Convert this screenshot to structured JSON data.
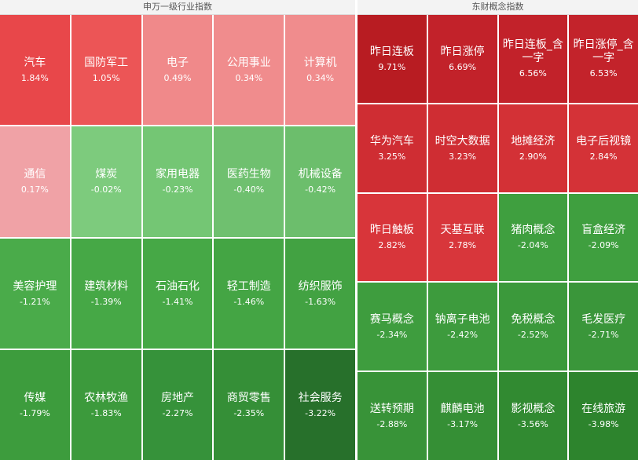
{
  "panels": [
    {
      "title": "申万一级行业指数",
      "cells": [
        {
          "name": "汽车",
          "change": "1.84%",
          "color": "#e8474a"
        },
        {
          "name": "国防军工",
          "change": "1.05%",
          "color": "#ec5556"
        },
        {
          "name": "电子",
          "change": "0.49%",
          "color": "#f0898a"
        },
        {
          "name": "公用事业",
          "change": "0.34%",
          "color": "#f08c8d"
        },
        {
          "name": "计算机",
          "change": "0.34%",
          "color": "#f08c8d"
        },
        {
          "name": "通信",
          "change": "0.17%",
          "color": "#f0a2a6"
        },
        {
          "name": "煤炭",
          "change": "-0.02%",
          "color": "#7dcb7d"
        },
        {
          "name": "家用电器",
          "change": "-0.23%",
          "color": "#74c674"
        },
        {
          "name": "医药生物",
          "change": "-0.40%",
          "color": "#6fc06f"
        },
        {
          "name": "机械设备",
          "change": "-0.42%",
          "color": "#6cbe6c"
        },
        {
          "name": "美容护理",
          "change": "-1.21%",
          "color": "#4aab4a"
        },
        {
          "name": "建筑材料",
          "change": "-1.39%",
          "color": "#46a846"
        },
        {
          "name": "石油石化",
          "change": "-1.41%",
          "color": "#46a846"
        },
        {
          "name": "轻工制造",
          "change": "-1.46%",
          "color": "#44a544"
        },
        {
          "name": "纺织服饰",
          "change": "-1.63%",
          "color": "#42a242"
        },
        {
          "name": "传媒",
          "change": "-1.79%",
          "color": "#3d9c3d"
        },
        {
          "name": "农林牧渔",
          "change": "-1.83%",
          "color": "#3c9a3c"
        },
        {
          "name": "房地产",
          "change": "-2.27%",
          "color": "#36923a"
        },
        {
          "name": "商贸零售",
          "change": "-2.35%",
          "color": "#358f37"
        },
        {
          "name": "社会服务",
          "change": "-3.22%",
          "color": "#27702b"
        }
      ]
    },
    {
      "title": "东财概念指数",
      "cells": [
        {
          "name": "昨日连板",
          "change": "9.71%",
          "color": "#b81c22"
        },
        {
          "name": "昨日涨停",
          "change": "6.69%",
          "color": "#c2222a"
        },
        {
          "name": "昨日连板_含一字",
          "change": "6.56%",
          "color": "#c2222a"
        },
        {
          "name": "昨日涨停_含一字",
          "change": "6.53%",
          "color": "#c3232b"
        },
        {
          "name": "华为汽车",
          "change": "3.25%",
          "color": "#cf2d33"
        },
        {
          "name": "时空大数据",
          "change": "3.23%",
          "color": "#cf2d33"
        },
        {
          "name": "地摊经济",
          "change": "2.90%",
          "color": "#d33136"
        },
        {
          "name": "电子后视镜",
          "change": "2.84%",
          "color": "#d43237"
        },
        {
          "name": "昨日触板",
          "change": "2.82%",
          "color": "#d8353a"
        },
        {
          "name": "天基互联",
          "change": "2.78%",
          "color": "#d8363b"
        },
        {
          "name": "猪肉概念",
          "change": "-2.04%",
          "color": "#3f9f3f"
        },
        {
          "name": "盲盒经济",
          "change": "-2.09%",
          "color": "#3f9f3f"
        },
        {
          "name": "赛马概念",
          "change": "-2.34%",
          "color": "#3e9d3e"
        },
        {
          "name": "钠离子电池",
          "change": "-2.42%",
          "color": "#3d9b3d"
        },
        {
          "name": "免税概念",
          "change": "-2.52%",
          "color": "#3b993b"
        },
        {
          "name": "毛发医疗",
          "change": "-2.71%",
          "color": "#3a963a"
        },
        {
          "name": "送转预期",
          "change": "-2.88%",
          "color": "#389338"
        },
        {
          "name": "麒麟电池",
          "change": "-3.17%",
          "color": "#358f35"
        },
        {
          "name": "影视概念",
          "change": "-3.56%",
          "color": "#318a31"
        },
        {
          "name": "在线旅游",
          "change": "-3.98%",
          "color": "#2d842d"
        }
      ]
    }
  ]
}
